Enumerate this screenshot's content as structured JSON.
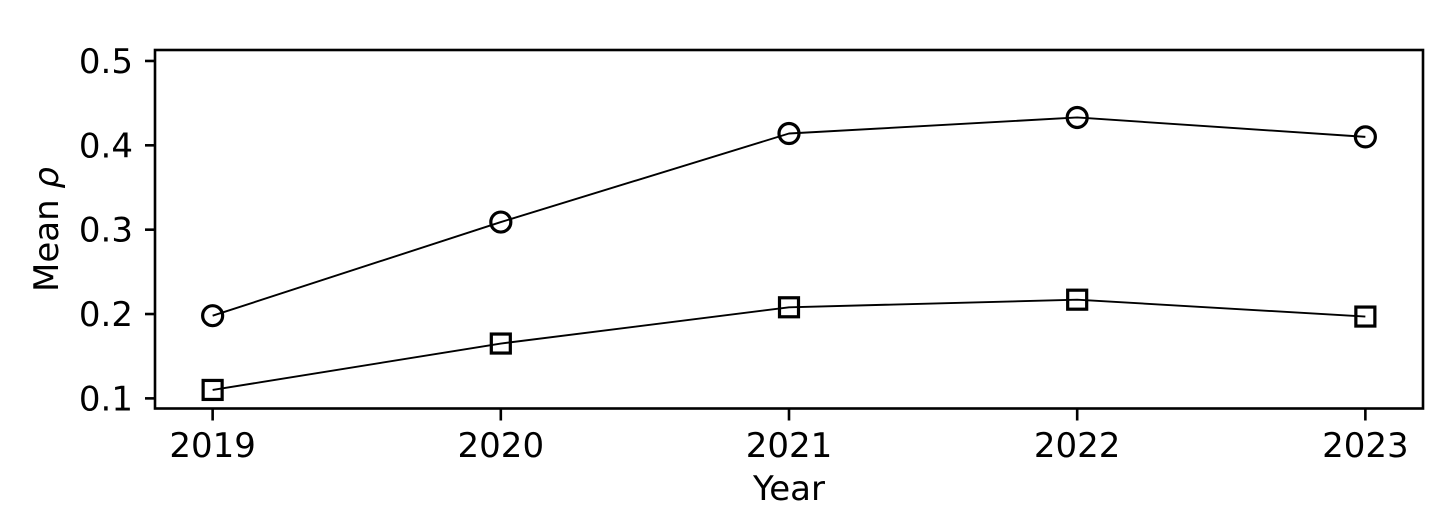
{
  "chart_data": {
    "type": "line",
    "title": "",
    "xlabel": "Year",
    "ylabel": "Mean ρ",
    "x": [
      2019,
      2020,
      2021,
      2022,
      2023
    ],
    "series": [
      {
        "name": "circle-series",
        "marker": "circle",
        "values": [
          0.198,
          0.309,
          0.414,
          0.433,
          0.41
        ]
      },
      {
        "name": "square-series",
        "marker": "square",
        "values": [
          0.11,
          0.165,
          0.208,
          0.217,
          0.197
        ]
      }
    ],
    "xticks": [
      2019,
      2020,
      2021,
      2022,
      2023
    ],
    "xtick_labels": [
      "2019",
      "2020",
      "2021",
      "2022",
      "2023"
    ],
    "yticks": [
      0.1,
      0.2,
      0.3,
      0.4,
      0.5
    ],
    "ytick_labels": [
      "0.1",
      "0.2",
      "0.3",
      "0.4",
      "0.5"
    ],
    "xlim": [
      2018.8,
      2023.2
    ],
    "ylim": [
      0.088,
      0.513
    ],
    "grid": false,
    "legend": null,
    "line_color": "#000000",
    "marker_face": "none",
    "background": "#ffffff"
  }
}
